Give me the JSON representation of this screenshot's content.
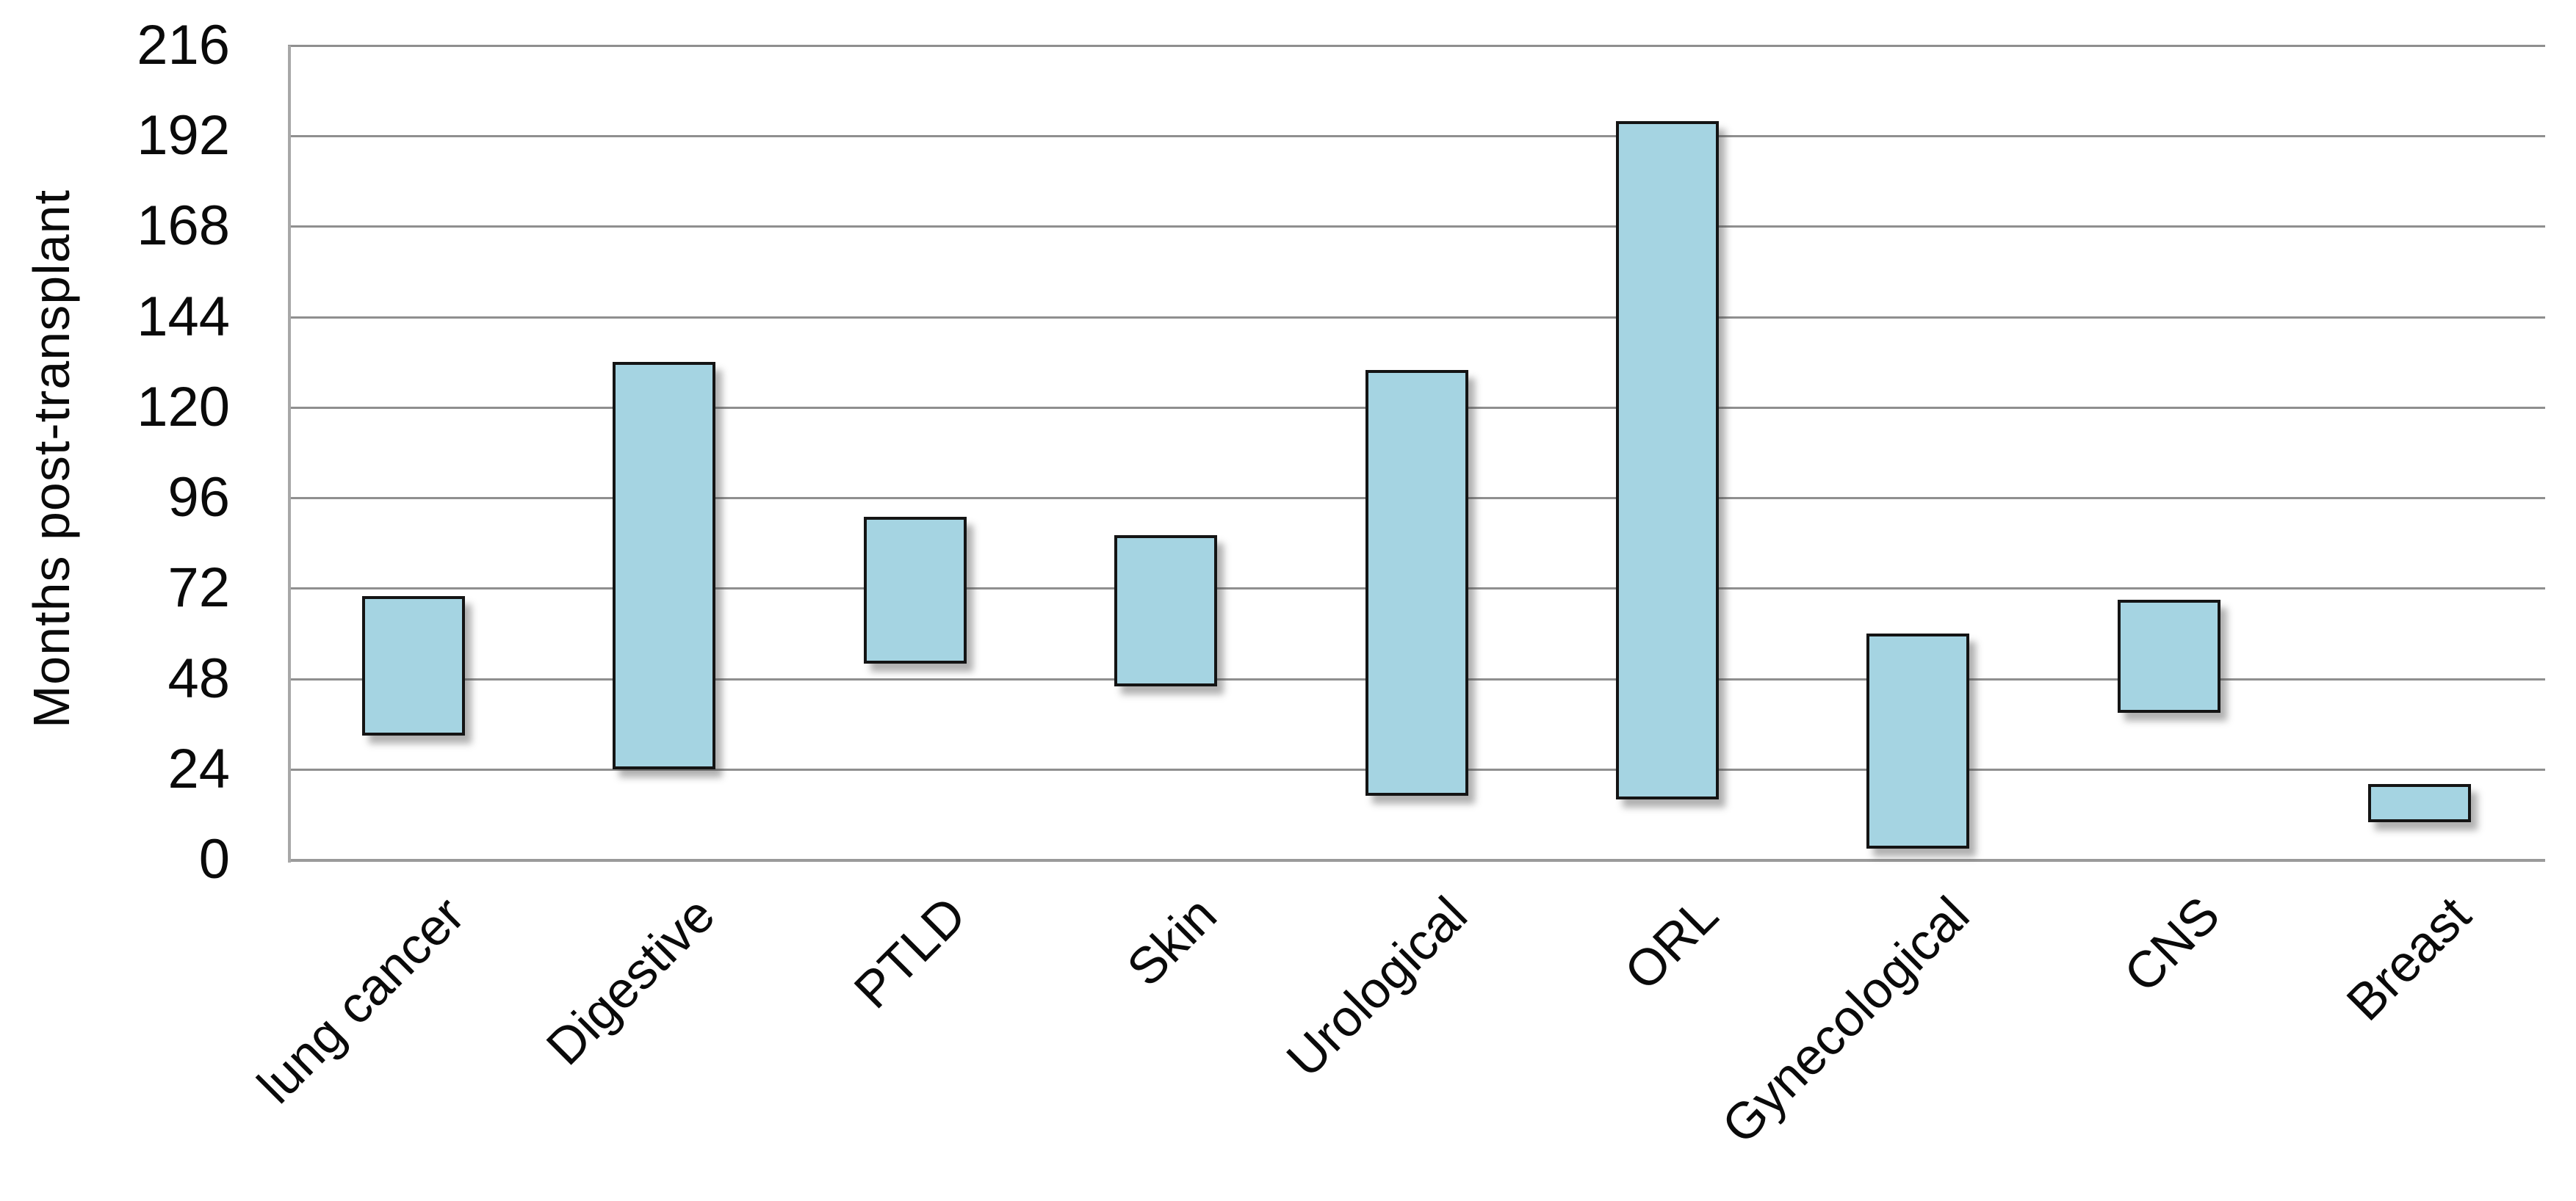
{
  "chart_data": {
    "type": "bar",
    "subtype": "floating-range-bars",
    "title": "",
    "xlabel": "",
    "ylabel": "Months post-transplant",
    "categories": [
      "lung cancer",
      "Digestive",
      "PTLD",
      "Skin",
      "Urological",
      "ORL",
      "Gynecological",
      "CNS",
      "Breast"
    ],
    "series": [
      {
        "name": "Months post-transplant range",
        "values": [
          {
            "category": "lung cancer",
            "min": 33,
            "max": 70
          },
          {
            "category": "Digestive",
            "min": 24,
            "max": 132
          },
          {
            "category": "PTLD",
            "min": 52,
            "max": 91
          },
          {
            "category": "Skin",
            "min": 46,
            "max": 86
          },
          {
            "category": "Urological",
            "min": 17,
            "max": 130
          },
          {
            "category": "ORL",
            "min": 16,
            "max": 196
          },
          {
            "category": "Gynecological",
            "min": 3,
            "max": 60
          },
          {
            "category": "CNS",
            "min": 39,
            "max": 69
          },
          {
            "category": "Breast",
            "min": 10,
            "max": 20
          }
        ]
      }
    ],
    "ylim": [
      0,
      216
    ],
    "yticks": [
      216,
      192,
      168,
      144,
      120,
      96,
      72,
      48,
      24,
      0
    ],
    "ytick_step": 24,
    "grid": "horizontal",
    "legend": "none",
    "colors": {
      "bar_fill": "#a5d4e2",
      "bar_border": "#141414",
      "gridline": "#8f8f8f",
      "axis_line": "#a8a8a8",
      "text": "#0a0a0a",
      "background": "#ffffff"
    }
  }
}
